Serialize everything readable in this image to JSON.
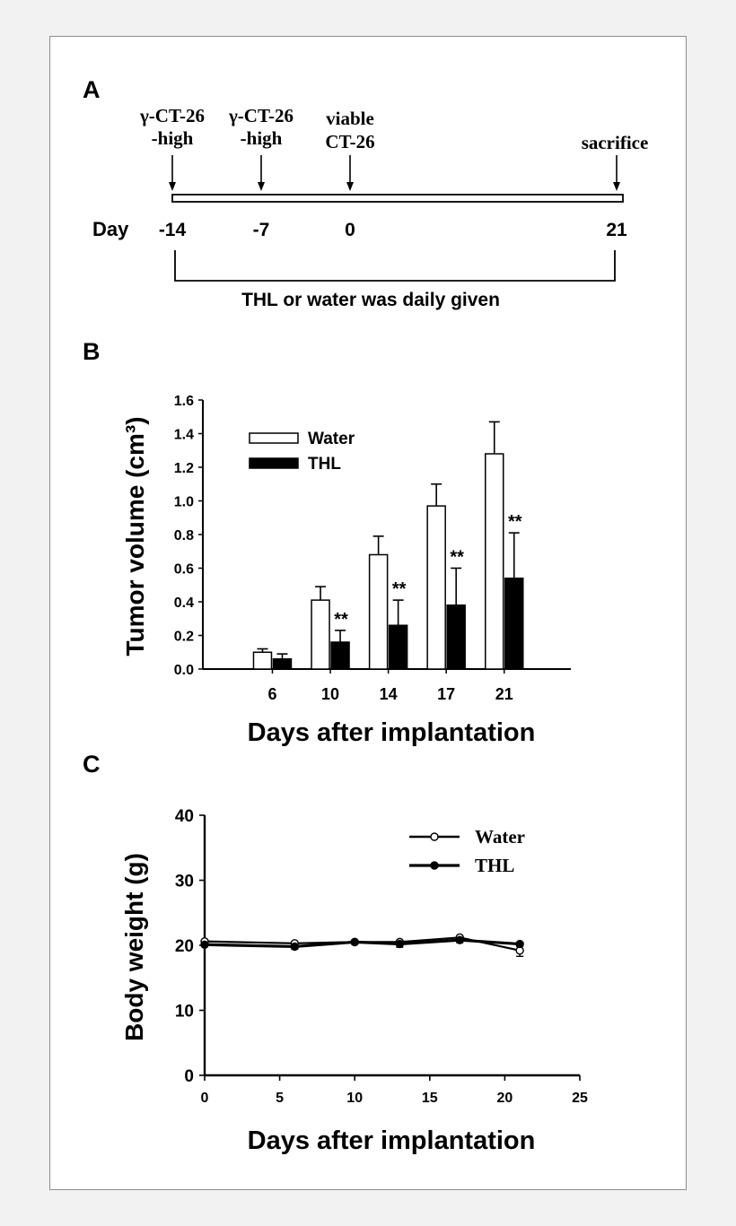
{
  "panels": {
    "a": {
      "letter": "A",
      "day_label": "Day",
      "events": [
        {
          "day": -14,
          "day_label": "-14",
          "lines": [
            "γ-CT-26",
            "-high"
          ]
        },
        {
          "day": -7,
          "day_label": "-7",
          "lines": [
            "γ-CT-26",
            "-high"
          ]
        },
        {
          "day": 0,
          "day_label": "0",
          "lines": [
            "viable",
            "CT-26"
          ]
        },
        {
          "day": 21,
          "day_label": "21",
          "lines": [
            "sacrifice"
          ]
        }
      ],
      "bracket_label": "THL or water was daily given"
    },
    "b": {
      "letter": "B"
    },
    "c": {
      "letter": "C"
    }
  },
  "chart_data": [
    {
      "type": "bar",
      "panel": "B",
      "ylabel": "Tumor volume (cm³)",
      "xlabel": "Days after implantation",
      "categories": [
        "6",
        "10",
        "14",
        "17",
        "21"
      ],
      "ylim": [
        0,
        1.6
      ],
      "yticks": [
        "0.0",
        "0.2",
        "0.4",
        "0.6",
        "0.8",
        "1.0",
        "1.2",
        "1.4",
        "1.6"
      ],
      "legend_position": "top-left",
      "series": [
        {
          "name": "Water",
          "fill": "#ffffff",
          "values": [
            0.1,
            0.41,
            0.68,
            0.97,
            1.28
          ],
          "errors": [
            0.02,
            0.08,
            0.11,
            0.13,
            0.19
          ]
        },
        {
          "name": "THL",
          "fill": "#000000",
          "values": [
            0.06,
            0.16,
            0.26,
            0.38,
            0.54
          ],
          "errors": [
            0.03,
            0.07,
            0.15,
            0.22,
            0.27
          ]
        }
      ],
      "annotations": [
        {
          "category": "10",
          "text": "**"
        },
        {
          "category": "14",
          "text": "**"
        },
        {
          "category": "17",
          "text": "**"
        },
        {
          "category": "21",
          "text": "**"
        }
      ]
    },
    {
      "type": "line",
      "panel": "C",
      "ylabel": "Body weight (g)",
      "xlabel": "Days after implantation",
      "xlim": [
        0,
        25
      ],
      "ylim": [
        0,
        40
      ],
      "xticks": [
        "0",
        "5",
        "10",
        "15",
        "20",
        "25"
      ],
      "yticks": [
        "0",
        "10",
        "20",
        "30",
        "40"
      ],
      "legend_position": "top-right",
      "series": [
        {
          "name": "Water",
          "marker": "open-circle",
          "x": [
            0,
            6,
            10,
            13,
            17,
            21
          ],
          "y": [
            20.6,
            20.3,
            20.5,
            20.5,
            21.2,
            19.2
          ],
          "errors": [
            0.3,
            0.3,
            0.3,
            0.4,
            0.4,
            0.9
          ]
        },
        {
          "name": "THL",
          "marker": "filled-circle",
          "x": [
            0,
            6,
            10,
            13,
            17,
            21
          ],
          "y": [
            20.1,
            19.8,
            20.5,
            20.2,
            20.8,
            20.2
          ],
          "errors": [
            0.3,
            0.4,
            0.3,
            0.5,
            0.4,
            0.4
          ]
        }
      ]
    }
  ]
}
